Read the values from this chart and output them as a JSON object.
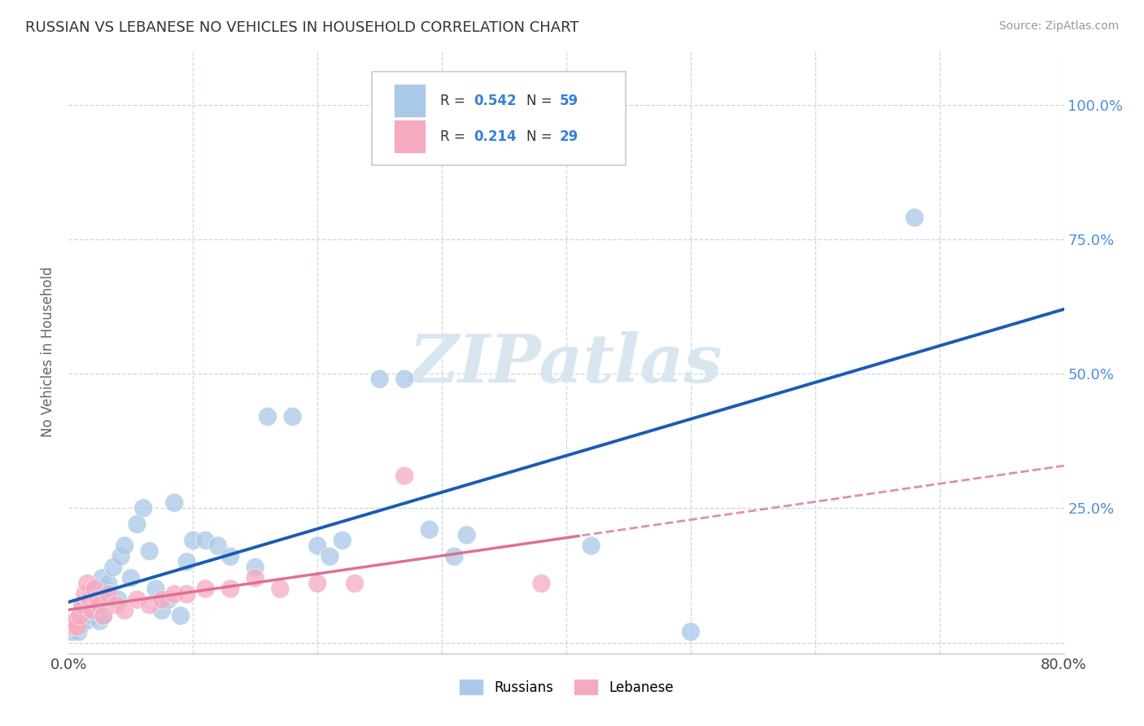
{
  "title": "RUSSIAN VS LEBANESE NO VEHICLES IN HOUSEHOLD CORRELATION CHART",
  "source": "Source: ZipAtlas.com",
  "ylabel": "No Vehicles in Household",
  "xlim": [
    0.0,
    0.8
  ],
  "ylim": [
    -0.02,
    1.1
  ],
  "xtick_positions": [
    0.0,
    0.1,
    0.2,
    0.3,
    0.4,
    0.5,
    0.6,
    0.7,
    0.8
  ],
  "xticklabels": [
    "0.0%",
    "",
    "",
    "",
    "",
    "",
    "",
    "",
    "80.0%"
  ],
  "ytick_positions": [
    0.0,
    0.25,
    0.5,
    0.75,
    1.0
  ],
  "yticklabels_right": [
    "",
    "25.0%",
    "50.0%",
    "75.0%",
    "100.0%"
  ],
  "russian_R": 0.542,
  "russian_N": 59,
  "lebanese_R": 0.214,
  "lebanese_N": 29,
  "russian_color": "#aac8e8",
  "lebanese_color": "#f5aac0",
  "russian_line_color": "#1a5cb5",
  "lebanese_solid_color": "#e07090",
  "lebanese_dash_color": "#e090a8",
  "watermark_color": "#d8e6f0",
  "background_color": "#ffffff",
  "grid_color": "#c8d8e4",
  "russian_x": [
    0.003,
    0.005,
    0.007,
    0.008,
    0.009,
    0.01,
    0.011,
    0.012,
    0.013,
    0.014,
    0.015,
    0.016,
    0.017,
    0.018,
    0.019,
    0.02,
    0.021,
    0.022,
    0.023,
    0.024,
    0.025,
    0.026,
    0.027,
    0.028,
    0.03,
    0.032,
    0.034,
    0.036,
    0.04,
    0.042,
    0.045,
    0.05,
    0.055,
    0.06,
    0.065,
    0.07,
    0.075,
    0.08,
    0.085,
    0.09,
    0.095,
    0.1,
    0.11,
    0.12,
    0.13,
    0.15,
    0.16,
    0.18,
    0.2,
    0.21,
    0.22,
    0.25,
    0.27,
    0.29,
    0.31,
    0.32,
    0.42,
    0.5,
    0.68
  ],
  "russian_y": [
    0.02,
    0.03,
    0.04,
    0.02,
    0.03,
    0.04,
    0.06,
    0.05,
    0.07,
    0.04,
    0.06,
    0.08,
    0.07,
    0.09,
    0.05,
    0.06,
    0.08,
    0.1,
    0.09,
    0.07,
    0.04,
    0.08,
    0.12,
    0.05,
    0.1,
    0.11,
    0.09,
    0.14,
    0.08,
    0.16,
    0.18,
    0.12,
    0.22,
    0.25,
    0.17,
    0.1,
    0.06,
    0.08,
    0.26,
    0.05,
    0.15,
    0.19,
    0.19,
    0.18,
    0.16,
    0.14,
    0.42,
    0.42,
    0.18,
    0.16,
    0.19,
    0.49,
    0.49,
    0.21,
    0.16,
    0.2,
    0.18,
    0.02,
    0.79
  ],
  "lebanese_x": [
    0.003,
    0.005,
    0.007,
    0.009,
    0.011,
    0.013,
    0.015,
    0.017,
    0.019,
    0.021,
    0.023,
    0.025,
    0.028,
    0.032,
    0.038,
    0.045,
    0.055,
    0.065,
    0.075,
    0.085,
    0.095,
    0.11,
    0.13,
    0.15,
    0.17,
    0.2,
    0.23,
    0.27,
    0.38
  ],
  "lebanese_y": [
    0.03,
    0.04,
    0.03,
    0.05,
    0.07,
    0.09,
    0.11,
    0.08,
    0.06,
    0.1,
    0.08,
    0.07,
    0.05,
    0.09,
    0.07,
    0.06,
    0.08,
    0.07,
    0.08,
    0.09,
    0.09,
    0.1,
    0.1,
    0.12,
    0.1,
    0.11,
    0.11,
    0.31,
    0.11
  ]
}
